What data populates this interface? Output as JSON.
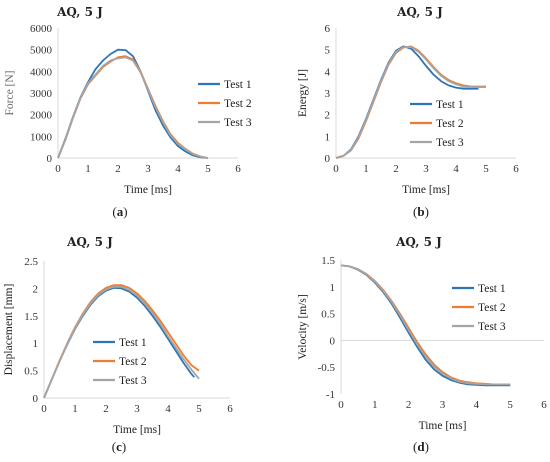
{
  "figure": {
    "panels_caption": [
      "(a)",
      "(b)",
      "(c)",
      "(d)"
    ]
  },
  "colors": {
    "test1": "#2e75b6",
    "test2": "#ed7d31",
    "test3": "#a5a5a5",
    "axis": "#d9d9d9"
  },
  "chart_data": [
    {
      "type": "line",
      "caption": "(a)",
      "caption_letter": "a",
      "title": "AQ, 5 J",
      "xlabel": "Time [ms]",
      "ylabel": "Force [N]",
      "xlim": [
        0,
        6
      ],
      "ylim": [
        0,
        6000
      ],
      "xticks": [
        0,
        1,
        2,
        3,
        4,
        5,
        6
      ],
      "yticks": [
        0,
        1000,
        2000,
        3000,
        4000,
        5000,
        6000
      ],
      "grid": false,
      "legend": "right",
      "series": [
        {
          "name": "Test 1",
          "x": [
            0,
            0.25,
            0.5,
            0.75,
            1,
            1.25,
            1.5,
            1.75,
            2,
            2.25,
            2.5,
            2.75,
            3,
            3.25,
            3.5,
            3.75,
            4,
            4.25,
            4.5,
            4.75,
            5
          ],
          "y": [
            0,
            900,
            1900,
            2800,
            3500,
            4100,
            4500,
            4800,
            5000,
            4980,
            4700,
            4000,
            3100,
            2200,
            1500,
            950,
            550,
            300,
            120,
            30,
            0
          ]
        },
        {
          "name": "Test 2",
          "x": [
            0,
            0.25,
            0.5,
            0.75,
            1,
            1.25,
            1.5,
            1.75,
            2,
            2.25,
            2.5,
            2.75,
            3,
            3.25,
            3.5,
            3.75,
            4,
            4.25,
            4.5,
            4.75,
            5
          ],
          "y": [
            0,
            850,
            1850,
            2750,
            3400,
            3800,
            4200,
            4450,
            4650,
            4700,
            4550,
            4000,
            3200,
            2400,
            1700,
            1100,
            700,
            420,
            200,
            70,
            0
          ]
        },
        {
          "name": "Test 3",
          "x": [
            0,
            0.25,
            0.5,
            0.75,
            1,
            1.25,
            1.5,
            1.75,
            2,
            2.25,
            2.5,
            2.75,
            3,
            3.25,
            3.5,
            3.75,
            4,
            4.25,
            4.5,
            4.75,
            5
          ],
          "y": [
            0,
            870,
            1880,
            2780,
            3450,
            3850,
            4250,
            4500,
            4600,
            4650,
            4500,
            3950,
            3150,
            2350,
            1650,
            1050,
            650,
            400,
            180,
            60,
            0
          ]
        }
      ]
    },
    {
      "type": "line",
      "caption": "(b)",
      "caption_letter": "b",
      "title": "AQ, 5 J",
      "xlabel": "Time [ms]",
      "ylabel": "Energy [J]",
      "xlim": [
        0,
        6
      ],
      "ylim": [
        0,
        6
      ],
      "xticks": [
        0,
        1,
        2,
        3,
        4,
        5,
        6
      ],
      "yticks": [
        0,
        1,
        2,
        3,
        4,
        5,
        6
      ],
      "grid": false,
      "legend": "center-right",
      "series": [
        {
          "name": "Test 1",
          "x": [
            0,
            0.25,
            0.5,
            0.75,
            1,
            1.25,
            1.5,
            1.75,
            2,
            2.25,
            2.5,
            2.75,
            3,
            3.25,
            3.5,
            3.75,
            4,
            4.25,
            4.5,
            4.75
          ],
          "y": [
            0,
            0.1,
            0.4,
            1.0,
            1.8,
            2.7,
            3.6,
            4.4,
            4.95,
            5.15,
            5.05,
            4.7,
            4.25,
            3.85,
            3.55,
            3.35,
            3.25,
            3.2,
            3.2,
            3.2
          ]
        },
        {
          "name": "Test 2",
          "x": [
            0,
            0.25,
            0.5,
            0.75,
            1,
            1.25,
            1.5,
            1.75,
            2,
            2.25,
            2.5,
            2.75,
            3,
            3.25,
            3.5,
            3.75,
            4,
            4.25,
            4.5,
            4.75,
            5
          ],
          "y": [
            0,
            0.1,
            0.35,
            0.9,
            1.7,
            2.6,
            3.5,
            4.3,
            4.85,
            5.1,
            5.15,
            4.95,
            4.6,
            4.2,
            3.85,
            3.6,
            3.45,
            3.35,
            3.3,
            3.3,
            3.3
          ]
        },
        {
          "name": "Test 3",
          "x": [
            0,
            0.25,
            0.5,
            0.75,
            1,
            1.25,
            1.5,
            1.75,
            2,
            2.25,
            2.5,
            2.75,
            3,
            3.25,
            3.5,
            3.75,
            4,
            4.25,
            4.5,
            4.75,
            5
          ],
          "y": [
            0,
            0.1,
            0.38,
            0.95,
            1.75,
            2.65,
            3.55,
            4.35,
            4.9,
            5.12,
            5.12,
            4.9,
            4.55,
            4.15,
            3.8,
            3.55,
            3.4,
            3.3,
            3.28,
            3.27,
            3.27
          ]
        }
      ]
    },
    {
      "type": "line",
      "caption": "(c)",
      "caption_letter": "c",
      "title": "AQ, 5 J",
      "xlabel": "Time [ms]",
      "ylabel": "Displacement [mm]",
      "xlim": [
        0,
        6
      ],
      "ylim": [
        0,
        2.5
      ],
      "xticks": [
        0,
        1,
        2,
        3,
        4,
        5,
        6
      ],
      "yticks": [
        0,
        0.5,
        1,
        1.5,
        2,
        2.5
      ],
      "grid": false,
      "legend": "center",
      "series": [
        {
          "name": "Test 1",
          "x": [
            0,
            0.25,
            0.5,
            0.75,
            1,
            1.25,
            1.5,
            1.75,
            2,
            2.25,
            2.5,
            2.75,
            3,
            3.25,
            3.5,
            3.75,
            4,
            4.25,
            4.5,
            4.75,
            4.85
          ],
          "y": [
            0,
            0.34,
            0.67,
            0.98,
            1.26,
            1.5,
            1.7,
            1.86,
            1.96,
            2.01,
            2.0,
            1.94,
            1.83,
            1.68,
            1.5,
            1.3,
            1.08,
            0.86,
            0.64,
            0.44,
            0.38
          ]
        },
        {
          "name": "Test 2",
          "x": [
            0,
            0.25,
            0.5,
            0.75,
            1,
            1.25,
            1.5,
            1.75,
            2,
            2.25,
            2.5,
            2.75,
            3,
            3.25,
            3.5,
            3.75,
            4,
            4.25,
            4.5,
            4.75,
            5
          ],
          "y": [
            0,
            0.34,
            0.68,
            1.0,
            1.29,
            1.54,
            1.75,
            1.91,
            2.01,
            2.06,
            2.06,
            2.01,
            1.91,
            1.77,
            1.6,
            1.41,
            1.2,
            0.99,
            0.78,
            0.6,
            0.5
          ]
        },
        {
          "name": "Test 3",
          "x": [
            0,
            0.25,
            0.5,
            0.75,
            1,
            1.25,
            1.5,
            1.75,
            2,
            2.25,
            2.5,
            2.75,
            3,
            3.25,
            3.5,
            3.75,
            4,
            4.25,
            4.5,
            4.75,
            5
          ],
          "y": [
            0,
            0.34,
            0.67,
            0.99,
            1.27,
            1.52,
            1.72,
            1.88,
            1.98,
            2.03,
            2.03,
            1.97,
            1.87,
            1.72,
            1.55,
            1.35,
            1.13,
            0.92,
            0.71,
            0.52,
            0.35
          ]
        }
      ]
    },
    {
      "type": "line",
      "caption": "(d)",
      "caption_letter": "d",
      "title": "AQ, 5 J",
      "xlabel": "Time [ms]",
      "ylabel": "Velocity [m/s]",
      "xlim": [
        0,
        6
      ],
      "ylim": [
        -1,
        1.5
      ],
      "xticks": [
        0,
        1,
        2,
        3,
        4,
        5,
        6
      ],
      "yticks": [
        -1,
        -0.5,
        0,
        0.5,
        1,
        1.5
      ],
      "grid": false,
      "legend": "right",
      "series": [
        {
          "name": "Test 1",
          "x": [
            0,
            0.25,
            0.5,
            0.75,
            1,
            1.25,
            1.5,
            1.75,
            2,
            2.25,
            2.5,
            2.75,
            3,
            3.25,
            3.5,
            3.75,
            4,
            4.25,
            4.5,
            4.75,
            5
          ],
          "y": [
            1.4,
            1.38,
            1.32,
            1.22,
            1.08,
            0.9,
            0.68,
            0.42,
            0.14,
            -0.12,
            -0.36,
            -0.54,
            -0.66,
            -0.74,
            -0.79,
            -0.82,
            -0.83,
            -0.84,
            -0.84,
            -0.84,
            -0.84
          ]
        },
        {
          "name": "Test 2",
          "x": [
            0,
            0.25,
            0.5,
            0.75,
            1,
            1.25,
            1.5,
            1.75,
            2,
            2.25,
            2.5,
            2.75,
            3,
            3.25,
            3.5,
            3.75,
            4,
            4.25,
            4.5,
            4.75,
            5
          ],
          "y": [
            1.4,
            1.38,
            1.33,
            1.24,
            1.11,
            0.94,
            0.73,
            0.49,
            0.23,
            -0.03,
            -0.26,
            -0.45,
            -0.59,
            -0.69,
            -0.75,
            -0.78,
            -0.8,
            -0.81,
            -0.82,
            -0.82,
            -0.82
          ]
        },
        {
          "name": "Test 3",
          "x": [
            0,
            0.25,
            0.5,
            0.75,
            1,
            1.25,
            1.5,
            1.75,
            2,
            2.25,
            2.5,
            2.75,
            3,
            3.25,
            3.5,
            3.75,
            4,
            4.25,
            4.5,
            4.75,
            5
          ],
          "y": [
            1.4,
            1.38,
            1.33,
            1.23,
            1.1,
            0.92,
            0.71,
            0.46,
            0.19,
            -0.07,
            -0.3,
            -0.49,
            -0.62,
            -0.71,
            -0.77,
            -0.8,
            -0.81,
            -0.82,
            -0.82,
            -0.82,
            -0.82
          ]
        }
      ]
    }
  ]
}
